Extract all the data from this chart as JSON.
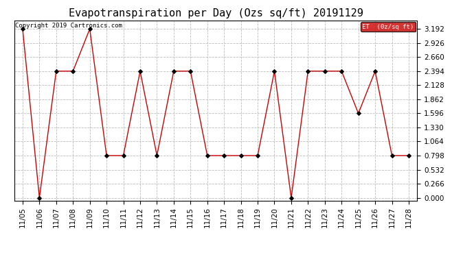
{
  "title": "Evapotranspiration per Day (Ozs sq/ft) 20191129",
  "copyright": "Copyright 2019 Cartronics.com",
  "legend_label": "ET  (0z/sq ft)",
  "legend_bg": "#cc0000",
  "legend_fg": "#ffffff",
  "line_color": "#cc0000",
  "marker_color": "#000000",
  "background_color": "#ffffff",
  "grid_color": "#bbbbbb",
  "dates": [
    "11/05",
    "11/06",
    "11/07",
    "11/08",
    "11/09",
    "11/10",
    "11/11",
    "11/12",
    "11/13",
    "11/14",
    "11/15",
    "11/16",
    "11/17",
    "11/18",
    "11/19",
    "11/20",
    "11/21",
    "11/22",
    "11/23",
    "11/24",
    "11/25",
    "11/26",
    "11/27",
    "11/28"
  ],
  "values": [
    3.192,
    0.0,
    2.394,
    2.394,
    3.192,
    0.798,
    0.798,
    2.394,
    0.798,
    2.394,
    2.394,
    0.798,
    0.798,
    0.798,
    0.798,
    2.394,
    0.0,
    2.394,
    2.394,
    2.394,
    1.596,
    2.394,
    0.798,
    0.798
  ],
  "yticks": [
    0.0,
    0.266,
    0.532,
    0.798,
    1.064,
    1.33,
    1.596,
    1.862,
    2.128,
    2.394,
    2.66,
    2.926,
    3.192
  ],
  "ylim": [
    -0.05,
    3.35
  ],
  "title_fontsize": 11,
  "tick_fontsize": 7.5,
  "copyright_fontsize": 6.5
}
